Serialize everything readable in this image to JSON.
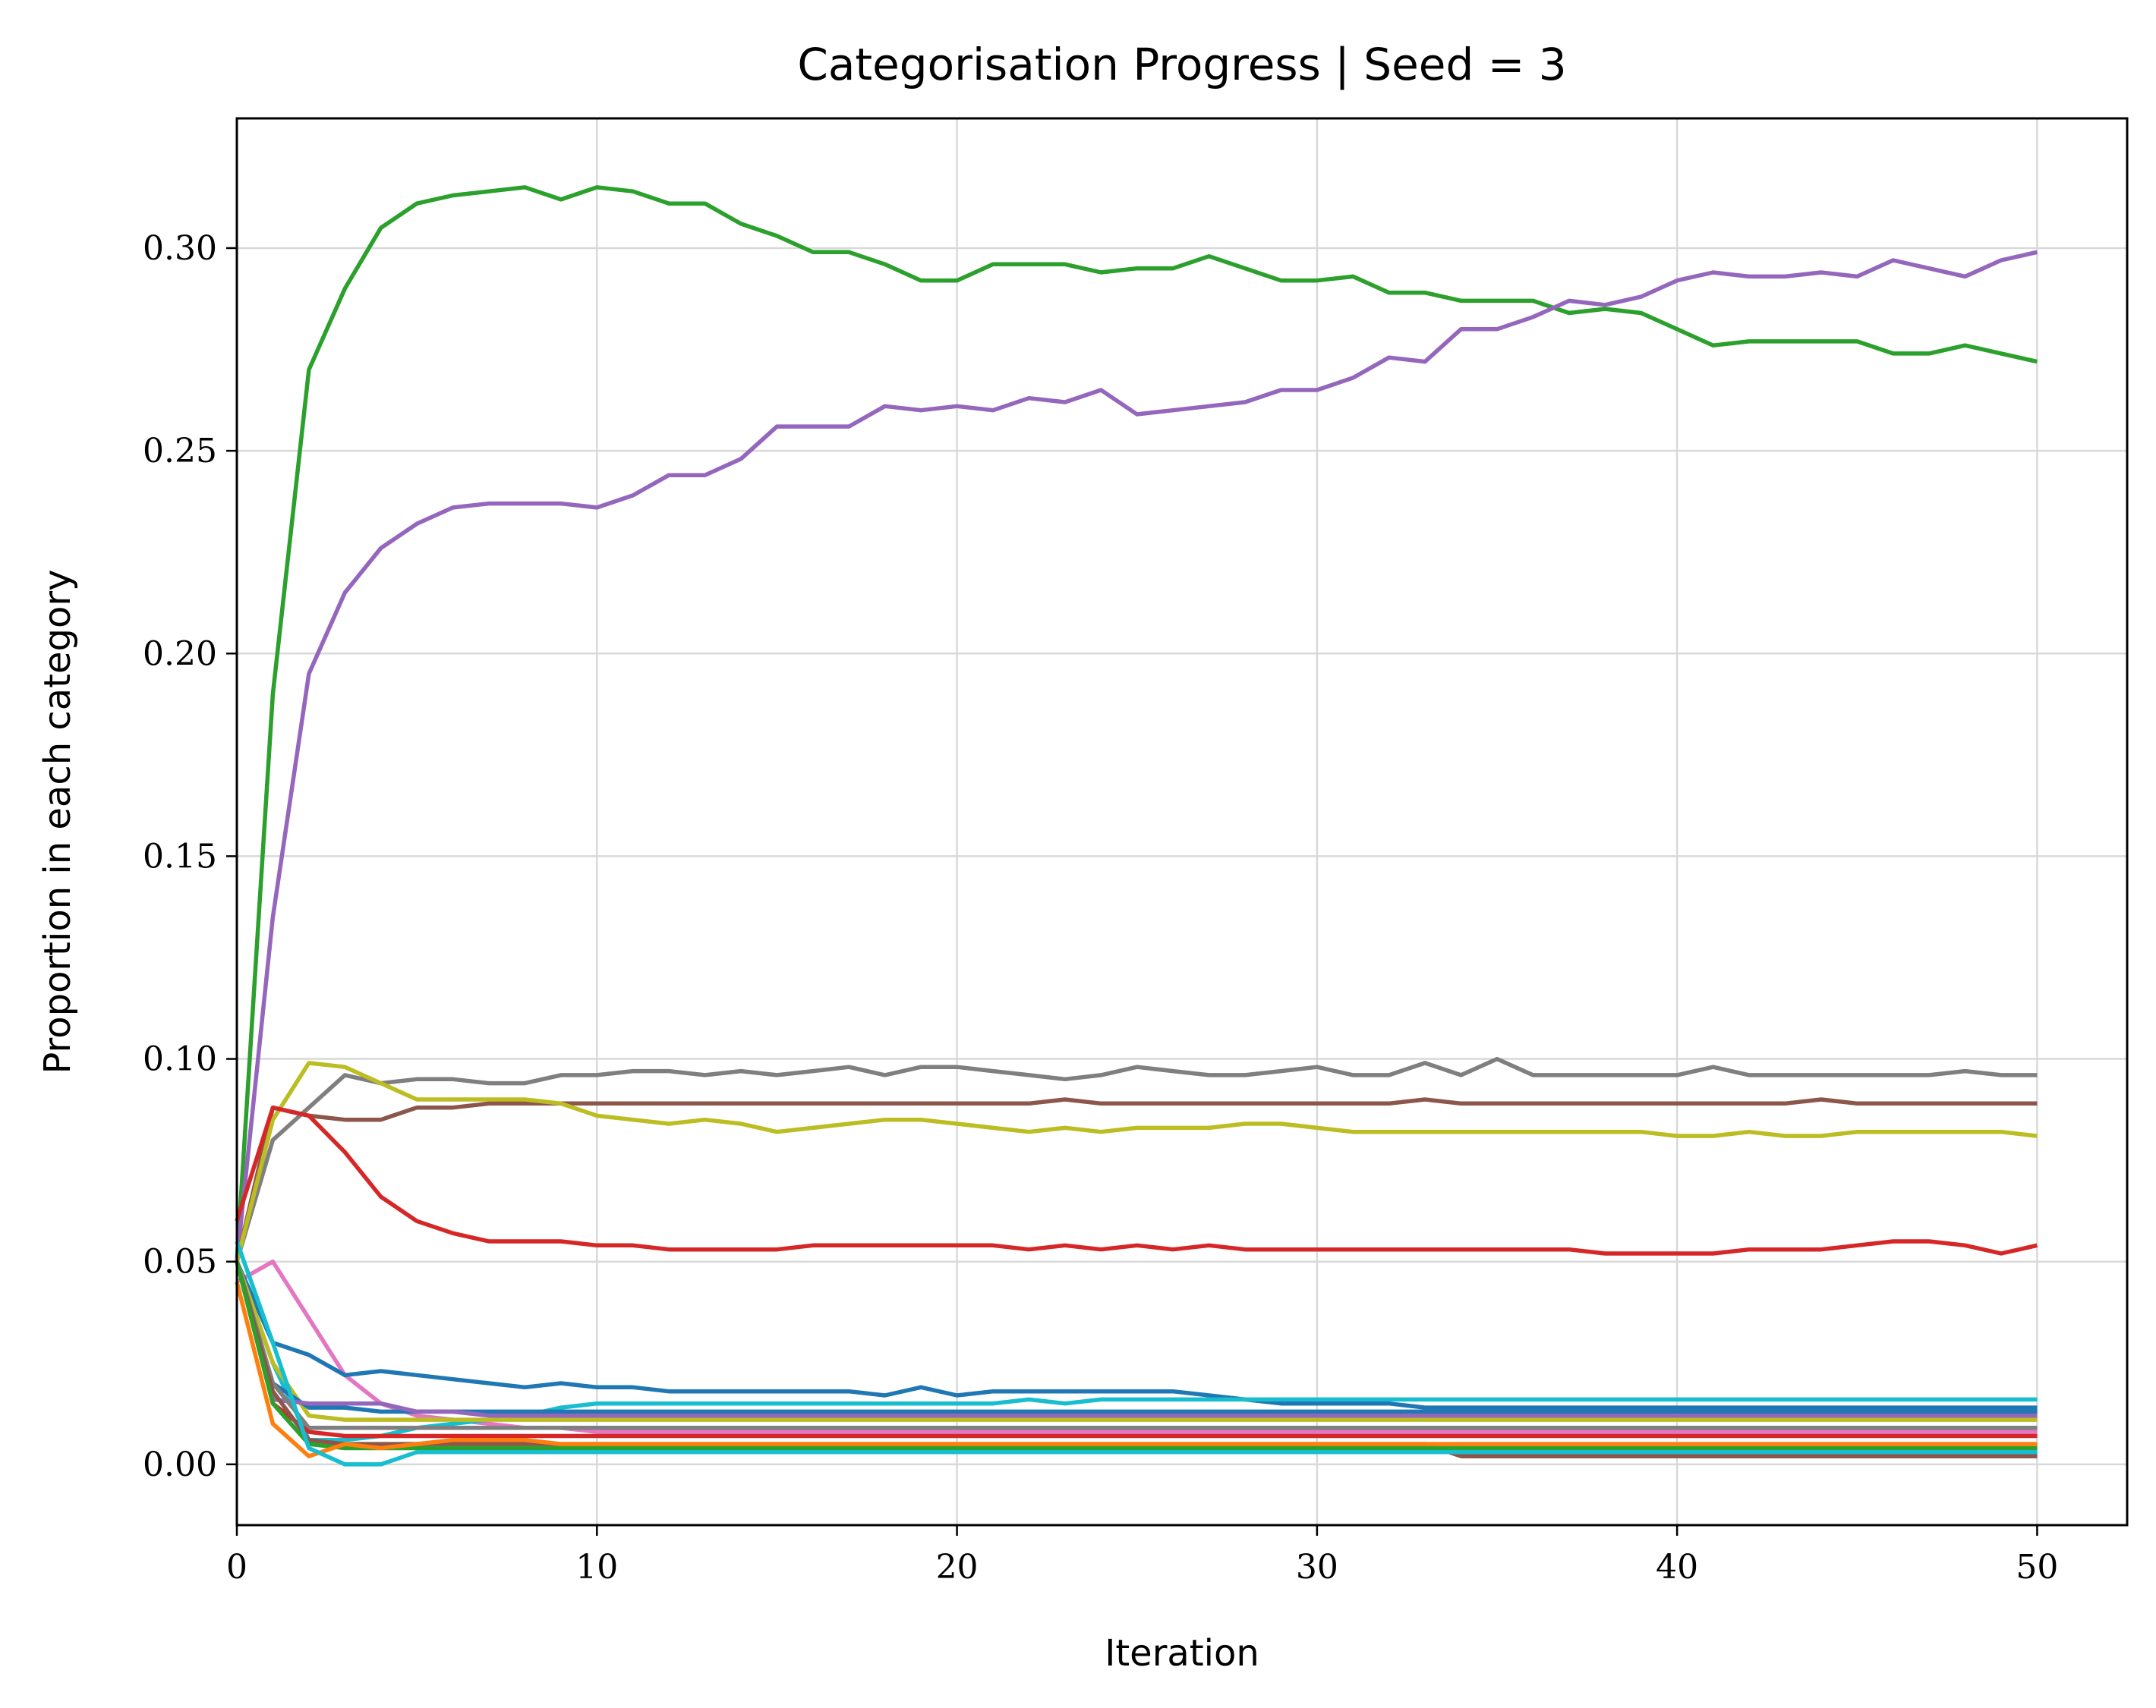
{
  "chart_data": {
    "type": "line",
    "title": "Categorisation Progress | Seed = 3",
    "xlabel": "Iteration",
    "ylabel": "Proportion in each category",
    "xlim": [
      0,
      52.5
    ],
    "ylim": [
      -0.015,
      0.332
    ],
    "x_ticks": [
      0,
      10,
      20,
      30,
      40,
      50
    ],
    "y_ticks": [
      0.0,
      0.05,
      0.1,
      0.15,
      0.2,
      0.25,
      0.3
    ],
    "x_tick_labels": [
      "0",
      "10",
      "20",
      "30",
      "40",
      "50"
    ],
    "y_tick_labels": [
      "0.00",
      "0.05",
      "0.10",
      "0.15",
      "0.20",
      "0.25",
      "0.30"
    ],
    "grid": true,
    "legend": "none",
    "x": [
      0,
      1,
      2,
      3,
      4,
      5,
      6,
      7,
      8,
      9,
      10,
      11,
      12,
      13,
      14,
      15,
      16,
      17,
      18,
      19,
      20,
      21,
      22,
      23,
      24,
      25,
      26,
      27,
      28,
      29,
      30,
      31,
      32,
      33,
      34,
      35,
      36,
      37,
      38,
      39,
      40,
      41,
      42,
      43,
      44,
      45,
      46,
      47,
      48,
      49,
      50
    ],
    "series": [
      {
        "color": "#2ca02c",
        "values": [
          0.05,
          0.19,
          0.27,
          0.29,
          0.305,
          0.311,
          0.313,
          0.314,
          0.315,
          0.312,
          0.315,
          0.314,
          0.311,
          0.311,
          0.306,
          0.303,
          0.299,
          0.299,
          0.296,
          0.292,
          0.292,
          0.296,
          0.296,
          0.296,
          0.294,
          0.295,
          0.295,
          0.298,
          0.295,
          0.292,
          0.292,
          0.293,
          0.289,
          0.289,
          0.287,
          0.287,
          0.287,
          0.284,
          0.285,
          0.284,
          0.28,
          0.276,
          0.277,
          0.277,
          0.277,
          0.277,
          0.274,
          0.274,
          0.276,
          0.274,
          0.272
        ]
      },
      {
        "color": "#9467bd",
        "values": [
          0.05,
          0.135,
          0.195,
          0.215,
          0.226,
          0.232,
          0.236,
          0.237,
          0.237,
          0.237,
          0.236,
          0.239,
          0.244,
          0.244,
          0.248,
          0.256,
          0.256,
          0.256,
          0.261,
          0.26,
          0.261,
          0.26,
          0.263,
          0.262,
          0.265,
          0.259,
          0.26,
          0.261,
          0.262,
          0.265,
          0.265,
          0.268,
          0.273,
          0.272,
          0.28,
          0.28,
          0.283,
          0.287,
          0.286,
          0.288,
          0.292,
          0.294,
          0.293,
          0.293,
          0.294,
          0.293,
          0.297,
          0.295,
          0.293,
          0.297,
          0.299
        ]
      },
      {
        "color": "#7f7f7f",
        "values": [
          0.05,
          0.08,
          0.088,
          0.096,
          0.094,
          0.095,
          0.095,
          0.094,
          0.094,
          0.096,
          0.096,
          0.097,
          0.097,
          0.096,
          0.097,
          0.096,
          0.097,
          0.098,
          0.096,
          0.098,
          0.098,
          0.097,
          0.096,
          0.095,
          0.096,
          0.098,
          0.097,
          0.096,
          0.096,
          0.097,
          0.098,
          0.096,
          0.096,
          0.099,
          0.096,
          0.1,
          0.096,
          0.096,
          0.096,
          0.096,
          0.096,
          0.098,
          0.096,
          0.096,
          0.096,
          0.096,
          0.096,
          0.096,
          0.097,
          0.096,
          0.096
        ]
      },
      {
        "color": "#8c564b",
        "values": [
          0.05,
          0.088,
          0.086,
          0.085,
          0.085,
          0.088,
          0.088,
          0.089,
          0.089,
          0.089,
          0.089,
          0.089,
          0.089,
          0.089,
          0.089,
          0.089,
          0.089,
          0.089,
          0.089,
          0.089,
          0.089,
          0.089,
          0.089,
          0.09,
          0.089,
          0.089,
          0.089,
          0.089,
          0.089,
          0.089,
          0.089,
          0.089,
          0.089,
          0.09,
          0.089,
          0.089,
          0.089,
          0.089,
          0.089,
          0.089,
          0.089,
          0.089,
          0.089,
          0.089,
          0.09,
          0.089,
          0.089,
          0.089,
          0.089,
          0.089,
          0.089
        ]
      },
      {
        "color": "#bcbd22",
        "values": [
          0.05,
          0.085,
          0.099,
          0.098,
          0.094,
          0.09,
          0.09,
          0.09,
          0.09,
          0.089,
          0.086,
          0.085,
          0.084,
          0.085,
          0.084,
          0.082,
          0.083,
          0.084,
          0.085,
          0.085,
          0.084,
          0.083,
          0.082,
          0.083,
          0.082,
          0.083,
          0.083,
          0.083,
          0.084,
          0.084,
          0.083,
          0.082,
          0.082,
          0.082,
          0.082,
          0.082,
          0.082,
          0.082,
          0.082,
          0.082,
          0.081,
          0.081,
          0.082,
          0.081,
          0.081,
          0.082,
          0.082,
          0.082,
          0.082,
          0.082,
          0.081
        ]
      },
      {
        "color": "#d62728",
        "values": [
          0.06,
          0.088,
          0.086,
          0.077,
          0.066,
          0.06,
          0.057,
          0.055,
          0.055,
          0.055,
          0.054,
          0.054,
          0.053,
          0.053,
          0.053,
          0.053,
          0.054,
          0.054,
          0.054,
          0.054,
          0.054,
          0.054,
          0.053,
          0.054,
          0.053,
          0.054,
          0.053,
          0.054,
          0.053,
          0.053,
          0.053,
          0.053,
          0.053,
          0.053,
          0.053,
          0.053,
          0.053,
          0.053,
          0.052,
          0.052,
          0.052,
          0.052,
          0.053,
          0.053,
          0.053,
          0.054,
          0.055,
          0.055,
          0.054,
          0.052,
          0.054
        ]
      },
      {
        "color": "#e377c2",
        "values": [
          0.045,
          0.05,
          0.036,
          0.022,
          0.015,
          0.012,
          0.011,
          0.01,
          0.009,
          0.009,
          0.008,
          0.008,
          0.008,
          0.008,
          0.008,
          0.008,
          0.008,
          0.008,
          0.008,
          0.008,
          0.008,
          0.008,
          0.008,
          0.008,
          0.008,
          0.008,
          0.008,
          0.008,
          0.008,
          0.008,
          0.008,
          0.008,
          0.008,
          0.008,
          0.008,
          0.008,
          0.008,
          0.008,
          0.008,
          0.008,
          0.008,
          0.008,
          0.008,
          0.008,
          0.008,
          0.008,
          0.008,
          0.008,
          0.008,
          0.008,
          0.008
        ]
      },
      {
        "color": "#1f77b4",
        "values": [
          0.05,
          0.03,
          0.027,
          0.022,
          0.023,
          0.022,
          0.021,
          0.02,
          0.019,
          0.02,
          0.019,
          0.019,
          0.018,
          0.018,
          0.018,
          0.018,
          0.018,
          0.018,
          0.017,
          0.019,
          0.017,
          0.018,
          0.018,
          0.018,
          0.018,
          0.018,
          0.018,
          0.017,
          0.016,
          0.015,
          0.015,
          0.015,
          0.015,
          0.014,
          0.014,
          0.014,
          0.014,
          0.014,
          0.014,
          0.014,
          0.014,
          0.014,
          0.014,
          0.014,
          0.014,
          0.014,
          0.014,
          0.014,
          0.014,
          0.014,
          0.014
        ]
      },
      {
        "color": "#17becf",
        "values": [
          0.05,
          0.025,
          0.006,
          0.006,
          0.007,
          0.009,
          0.01,
          0.011,
          0.012,
          0.014,
          0.015,
          0.015,
          0.015,
          0.015,
          0.015,
          0.015,
          0.015,
          0.015,
          0.015,
          0.015,
          0.015,
          0.015,
          0.016,
          0.015,
          0.016,
          0.016,
          0.016,
          0.016,
          0.016,
          0.016,
          0.016,
          0.016,
          0.016,
          0.016,
          0.016,
          0.016,
          0.016,
          0.016,
          0.016,
          0.016,
          0.016,
          0.016,
          0.016,
          0.016,
          0.016,
          0.016,
          0.016,
          0.016,
          0.016,
          0.016,
          0.016
        ]
      },
      {
        "color": "#bcbd22",
        "values": [
          0.05,
          0.025,
          0.012,
          0.011,
          0.011,
          0.011,
          0.011,
          0.011,
          0.011,
          0.011,
          0.011,
          0.011,
          0.011,
          0.011,
          0.011,
          0.011,
          0.011,
          0.011,
          0.011,
          0.011,
          0.011,
          0.011,
          0.011,
          0.011,
          0.011,
          0.011,
          0.011,
          0.011,
          0.011,
          0.011,
          0.011,
          0.011,
          0.011,
          0.011,
          0.011,
          0.011,
          0.011,
          0.011,
          0.011,
          0.011,
          0.011,
          0.011,
          0.011,
          0.011,
          0.011,
          0.011,
          0.011,
          0.011,
          0.011,
          0.011,
          0.011
        ]
      },
      {
        "color": "#1f77b4",
        "values": [
          0.05,
          0.02,
          0.014,
          0.014,
          0.013,
          0.013,
          0.013,
          0.013,
          0.013,
          0.013,
          0.013,
          0.013,
          0.013,
          0.013,
          0.013,
          0.013,
          0.013,
          0.013,
          0.013,
          0.013,
          0.013,
          0.013,
          0.013,
          0.013,
          0.013,
          0.013,
          0.013,
          0.013,
          0.013,
          0.013,
          0.013,
          0.013,
          0.013,
          0.013,
          0.013,
          0.013,
          0.013,
          0.013,
          0.013,
          0.013,
          0.013,
          0.013,
          0.013,
          0.013,
          0.013,
          0.013,
          0.013,
          0.013,
          0.013,
          0.013,
          0.013
        ]
      },
      {
        "color": "#9467bd",
        "values": [
          0.05,
          0.016,
          0.015,
          0.015,
          0.015,
          0.013,
          0.013,
          0.012,
          0.012,
          0.012,
          0.012,
          0.012,
          0.012,
          0.012,
          0.012,
          0.012,
          0.012,
          0.012,
          0.012,
          0.012,
          0.012,
          0.012,
          0.012,
          0.012,
          0.012,
          0.012,
          0.012,
          0.012,
          0.012,
          0.012,
          0.012,
          0.012,
          0.012,
          0.012,
          0.012,
          0.012,
          0.012,
          0.012,
          0.012,
          0.012,
          0.012,
          0.012,
          0.012,
          0.012,
          0.012,
          0.012,
          0.012,
          0.012,
          0.012,
          0.012,
          0.012
        ]
      },
      {
        "color": "#7f7f7f",
        "values": [
          0.05,
          0.02,
          0.009,
          0.009,
          0.009,
          0.009,
          0.009,
          0.009,
          0.009,
          0.009,
          0.009,
          0.009,
          0.009,
          0.009,
          0.009,
          0.009,
          0.009,
          0.009,
          0.009,
          0.009,
          0.009,
          0.009,
          0.009,
          0.009,
          0.009,
          0.009,
          0.009,
          0.009,
          0.009,
          0.009,
          0.009,
          0.009,
          0.009,
          0.009,
          0.009,
          0.009,
          0.009,
          0.009,
          0.009,
          0.009,
          0.009,
          0.009,
          0.009,
          0.009,
          0.009,
          0.009,
          0.009,
          0.009,
          0.009,
          0.009,
          0.009
        ]
      },
      {
        "color": "#d62728",
        "values": [
          0.05,
          0.015,
          0.008,
          0.007,
          0.007,
          0.007,
          0.007,
          0.007,
          0.007,
          0.007,
          0.007,
          0.007,
          0.007,
          0.007,
          0.007,
          0.007,
          0.007,
          0.007,
          0.007,
          0.007,
          0.007,
          0.007,
          0.007,
          0.007,
          0.007,
          0.007,
          0.007,
          0.007,
          0.007,
          0.007,
          0.007,
          0.007,
          0.007,
          0.007,
          0.007,
          0.007,
          0.007,
          0.007,
          0.007,
          0.007,
          0.007,
          0.007,
          0.007,
          0.007,
          0.007,
          0.007,
          0.007,
          0.007,
          0.007,
          0.007,
          0.007
        ]
      },
      {
        "color": "#8c564b",
        "values": [
          0.05,
          0.018,
          0.006,
          0.005,
          0.005,
          0.005,
          0.005,
          0.005,
          0.005,
          0.005,
          0.005,
          0.005,
          0.005,
          0.005,
          0.005,
          0.005,
          0.005,
          0.005,
          0.005,
          0.005,
          0.005,
          0.005,
          0.005,
          0.005,
          0.005,
          0.005,
          0.005,
          0.005,
          0.005,
          0.005,
          0.005,
          0.005,
          0.005,
          0.005,
          0.002,
          0.002,
          0.002,
          0.002,
          0.002,
          0.002,
          0.002,
          0.002,
          0.002,
          0.002,
          0.002,
          0.002,
          0.002,
          0.002,
          0.002,
          0.002,
          0.002
        ]
      },
      {
        "color": "#2ca02c",
        "values": [
          0.05,
          0.015,
          0.005,
          0.004,
          0.004,
          0.004,
          0.004,
          0.004,
          0.004,
          0.004,
          0.004,
          0.004,
          0.004,
          0.004,
          0.004,
          0.004,
          0.004,
          0.004,
          0.004,
          0.004,
          0.004,
          0.004,
          0.004,
          0.004,
          0.004,
          0.004,
          0.004,
          0.004,
          0.004,
          0.004,
          0.004,
          0.004,
          0.004,
          0.004,
          0.004,
          0.004,
          0.004,
          0.004,
          0.004,
          0.004,
          0.004,
          0.004,
          0.004,
          0.004,
          0.004,
          0.004,
          0.004,
          0.004,
          0.004,
          0.004,
          0.004
        ]
      },
      {
        "color": "#ff7f0e",
        "values": [
          0.045,
          0.01,
          0.002,
          0.005,
          0.004,
          0.005,
          0.006,
          0.006,
          0.006,
          0.005,
          0.005,
          0.005,
          0.005,
          0.005,
          0.005,
          0.005,
          0.005,
          0.005,
          0.005,
          0.005,
          0.005,
          0.005,
          0.005,
          0.005,
          0.005,
          0.005,
          0.005,
          0.005,
          0.005,
          0.005,
          0.005,
          0.005,
          0.005,
          0.005,
          0.005,
          0.005,
          0.005,
          0.005,
          0.005,
          0.005,
          0.005,
          0.005,
          0.005,
          0.005,
          0.005,
          0.005,
          0.005,
          0.005,
          0.005,
          0.005,
          0.005
        ]
      },
      {
        "color": "#17becf",
        "values": [
          0.055,
          0.03,
          0.004,
          0.0,
          0.0,
          0.003,
          0.003,
          0.003,
          0.003,
          0.003,
          0.003,
          0.003,
          0.003,
          0.003,
          0.003,
          0.003,
          0.003,
          0.003,
          0.003,
          0.003,
          0.003,
          0.003,
          0.003,
          0.003,
          0.003,
          0.003,
          0.003,
          0.003,
          0.003,
          0.003,
          0.003,
          0.003,
          0.003,
          0.003,
          0.003,
          0.003,
          0.003,
          0.003,
          0.003,
          0.003,
          0.003,
          0.003,
          0.003,
          0.003,
          0.003,
          0.003,
          0.003,
          0.003,
          0.003,
          0.003,
          0.003
        ]
      }
    ]
  }
}
